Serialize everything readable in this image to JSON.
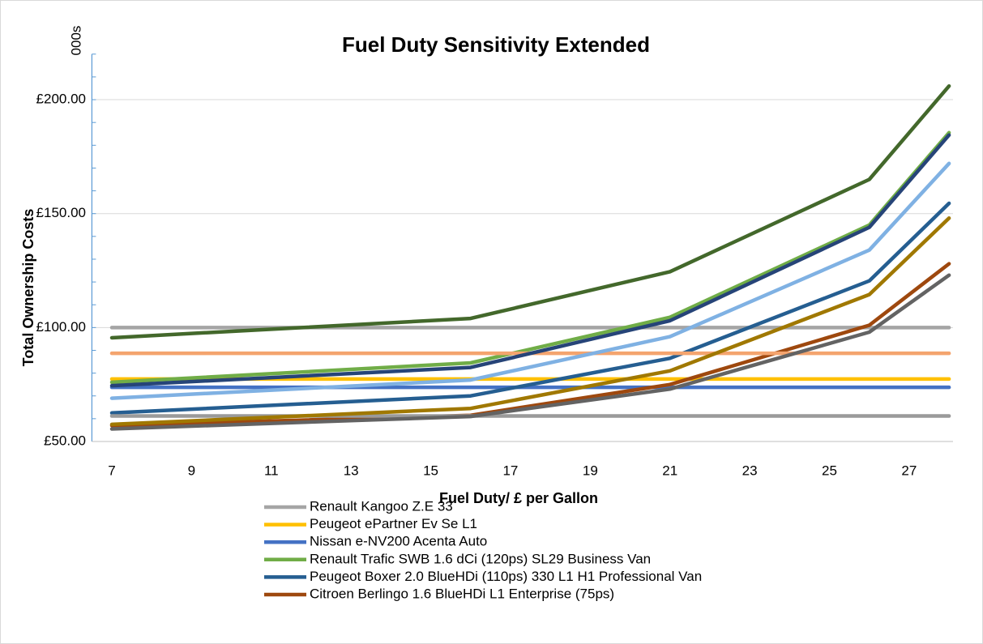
{
  "chart_data": {
    "type": "line",
    "title": "Fuel Duty Sensitivity Extended",
    "unit_note": "000s",
    "y_label": "Total Ownership Costs",
    "x_label": "Fuel Duty/ £ per Gallon",
    "x": [
      7,
      16,
      21,
      26,
      28
    ],
    "xlim": [
      6.5,
      28.1
    ],
    "xticks": [
      7,
      9,
      11,
      13,
      15,
      17,
      19,
      21,
      23,
      25,
      27
    ],
    "ylim": [
      50,
      220
    ],
    "yticks": [
      {
        "value": 50,
        "label": "£50.00"
      },
      {
        "value": 100,
        "label": "£100.00"
      },
      {
        "value": 150,
        "label": "£150.00"
      },
      {
        "value": 200,
        "label": "£200.00"
      }
    ],
    "grid": true,
    "legend": "bottom",
    "series": [
      {
        "name": "Renault Kangoo Z.E 33",
        "color": "#a5a5a5",
        "values": [
          100,
          100,
          100,
          100,
          100
        ]
      },
      {
        "name": "Peugeot ePartner Ev Se L1",
        "color": "#ffc000",
        "values": [
          77.4,
          77.4,
          77.4,
          77.4,
          77.4
        ]
      },
      {
        "name": "Nissan e-NV200 Acenta Auto",
        "color": "#4472c4",
        "values": [
          73.8,
          73.8,
          73.8,
          73.8,
          73.8
        ]
      },
      {
        "name": "Renault Trafic SWB 1.6 dCi (120ps) SL29 Business Van",
        "color": "#70ad47",
        "values": [
          76,
          84.5,
          104.5,
          145,
          185.5
        ]
      },
      {
        "name": "Peugeot Boxer 2.0 BlueHDi (110ps) 330 L1 H1 Professional Van",
        "color": "#255e91",
        "values": [
          62.5,
          70,
          86.5,
          120.5,
          154.5
        ]
      },
      {
        "name": "Citroen Berlingo 1.6 BlueHDi L1 Enterprise (75ps)",
        "color": "#9e480e",
        "values": [
          57,
          61.5,
          75,
          101,
          128
        ]
      },
      {
        "color": "#f4a46e",
        "values": [
          88.7,
          88.7,
          88.7,
          88.7,
          88.7
        ]
      },
      {
        "color": "#9a9a9a",
        "values": [
          61.2,
          61.2,
          61.2,
          61.2,
          61.2
        ]
      },
      {
        "color": "#7fb1e3",
        "values": [
          69,
          77,
          96,
          134,
          172
        ]
      },
      {
        "color": "#a07800",
        "values": [
          57.5,
          64.5,
          81,
          114.5,
          148
        ]
      },
      {
        "color": "#43682b",
        "values": [
          95.5,
          104,
          124.5,
          165,
          206
        ]
      },
      {
        "color": "#264478",
        "values": [
          74.5,
          82.5,
          103,
          144,
          184.5
        ]
      },
      {
        "color": "#636363",
        "values": [
          55.5,
          61,
          73,
          98,
          123
        ]
      }
    ]
  }
}
